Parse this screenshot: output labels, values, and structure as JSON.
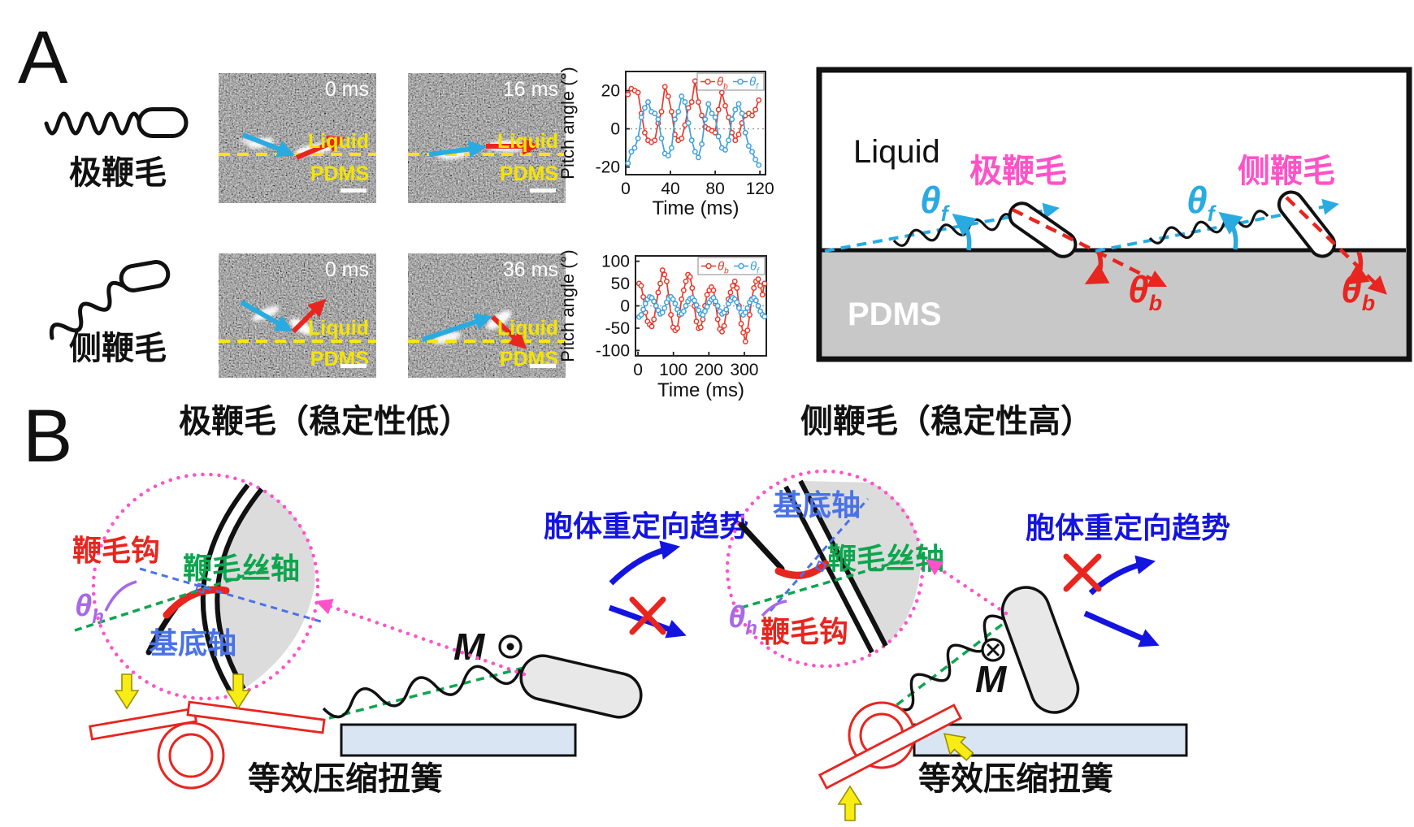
{
  "figure": {
    "panel_a_label": "A",
    "panel_b_label": "B"
  },
  "panel_a": {
    "polar_label": "极鞭毛",
    "lateral_label": "侧鞭毛",
    "micrographs": [
      {
        "time": "0 ms",
        "liquid": "Liquid",
        "pdms": "PDMS"
      },
      {
        "time": "16 ms",
        "liquid": "Liquid",
        "pdms": "PDMS"
      },
      {
        "time": "0 ms",
        "liquid": "Liquid",
        "pdms": "PDMS"
      },
      {
        "time": "36 ms",
        "liquid": "Liquid",
        "pdms": "PDMS"
      }
    ],
    "schematic": {
      "liquid": "Liquid",
      "pdms": "PDMS",
      "polar": "极鞭毛",
      "lateral": "侧鞭毛",
      "theta": "θ",
      "sub_f": "f",
      "sub_b": "b"
    }
  },
  "chart_data": [
    {
      "type": "line",
      "title": "",
      "xlabel": "Time (ms)",
      "ylabel": "Pitch angle (°)",
      "xlim": [
        0,
        125
      ],
      "ylim": [
        -24,
        30
      ],
      "xticks": [
        0,
        40,
        80,
        120
      ],
      "yticks": [
        -20,
        0,
        20
      ],
      "zero_line": true,
      "legend_position": "top-right",
      "series": [
        {
          "name_sym": "θ",
          "name_sub": "b",
          "color": "#E8392B",
          "x_start": 2,
          "x_step": 3,
          "values": [
            18,
            21,
            20,
            19,
            8,
            -2,
            -6,
            -7,
            -6,
            3,
            9,
            22,
            17,
            9,
            -3,
            -6,
            -5,
            2,
            11,
            14,
            25,
            14,
            7,
            1,
            0,
            -1,
            -2,
            10,
            19,
            12,
            6,
            -2,
            -6,
            -3,
            3,
            7,
            8,
            7,
            10,
            15
          ]
        },
        {
          "name_sym": "θ",
          "name_sub": "f",
          "color": "#3FA0DC",
          "x_start": 2,
          "x_step": 3,
          "values": [
            -18,
            -12,
            -10,
            -5,
            6,
            11,
            14,
            9,
            8,
            5,
            -5,
            -13,
            -14,
            -10,
            5,
            9,
            17,
            14,
            3,
            -6,
            -12,
            -15,
            -8,
            5,
            13,
            8,
            6,
            -4,
            -10,
            -11,
            -6,
            5,
            10,
            13,
            8,
            -2,
            -9,
            -12,
            -16,
            -19
          ]
        }
      ]
    },
    {
      "type": "line",
      "title": "",
      "xlabel": "Time (ms)",
      "ylabel": "Pitch angle (°)",
      "xlim": [
        -7,
        362
      ],
      "ylim": [
        -112,
        112
      ],
      "xticks": [
        0,
        100,
        200,
        300
      ],
      "yticks": [
        -100,
        -50,
        0,
        50,
        100
      ],
      "zero_line": true,
      "legend_position": "top-right",
      "series": [
        {
          "name_sym": "θ",
          "name_sub": "b",
          "color": "#E8392B",
          "x_start": 3,
          "x_step": 6,
          "values": [
            50,
            45,
            20,
            -15,
            -35,
            -42,
            -46,
            -30,
            0,
            30,
            50,
            80,
            70,
            55,
            20,
            -20,
            -48,
            -55,
            -50,
            -20,
            15,
            35,
            55,
            70,
            65,
            40,
            0,
            -35,
            -50,
            -48,
            -30,
            0,
            25,
            35,
            42,
            35,
            5,
            -30,
            -52,
            -58,
            -45,
            -15,
            15,
            30,
            45,
            55,
            40,
            0,
            -40,
            -60,
            -80,
            -55,
            -20,
            15,
            40,
            55,
            60,
            45,
            25,
            50
          ]
        },
        {
          "name_sym": "θ",
          "name_sub": "f",
          "color": "#3FA0DC",
          "x_start": 3,
          "x_step": 6,
          "values": [
            -25,
            -20,
            -8,
            5,
            15,
            20,
            18,
            10,
            0,
            -10,
            -18,
            -15,
            -5,
            8,
            16,
            20,
            15,
            5,
            -8,
            -15,
            -18,
            -12,
            0,
            10,
            16,
            18,
            12,
            2,
            -10,
            -18,
            -20,
            -12,
            -2,
            8,
            14,
            18,
            10,
            0,
            -12,
            -18,
            -15,
            -8,
            5,
            12,
            18,
            15,
            8,
            -5,
            -15,
            -20,
            -15,
            -5,
            8,
            14,
            18,
            12,
            0,
            -12,
            -20,
            -24
          ]
        }
      ]
    }
  ],
  "panel_b": {
    "left": {
      "title": "极鞭毛（稳定性低）"
    },
    "right": {
      "title": "侧鞭毛（稳定性高）"
    },
    "inset": {
      "hook": "鞭毛钩",
      "filament_axis": "鞭毛丝轴",
      "basal_axis": "基底轴",
      "theta": "θ",
      "sub_h": "h"
    },
    "reorient": "胞体重定向趋势",
    "spring": "等效压缩扭簧",
    "moment": "M"
  },
  "colors": {
    "magenta": "#FF52C8",
    "cyan_arrow": "#29ABE2",
    "red": "#E8251F",
    "chart_red": "#E8392B",
    "chart_blue": "#3FA0DC",
    "green_axis": "#0DA64F",
    "blue_axis": "#4A72E8",
    "purple": "#A869E8",
    "reorient_blue": "#1414E0",
    "yellow_label": "#F5E400",
    "pdms_gray": "#C8C8C8",
    "platform_blue": "#D9E5F2",
    "yellow_arrow": "#F7EC13"
  }
}
